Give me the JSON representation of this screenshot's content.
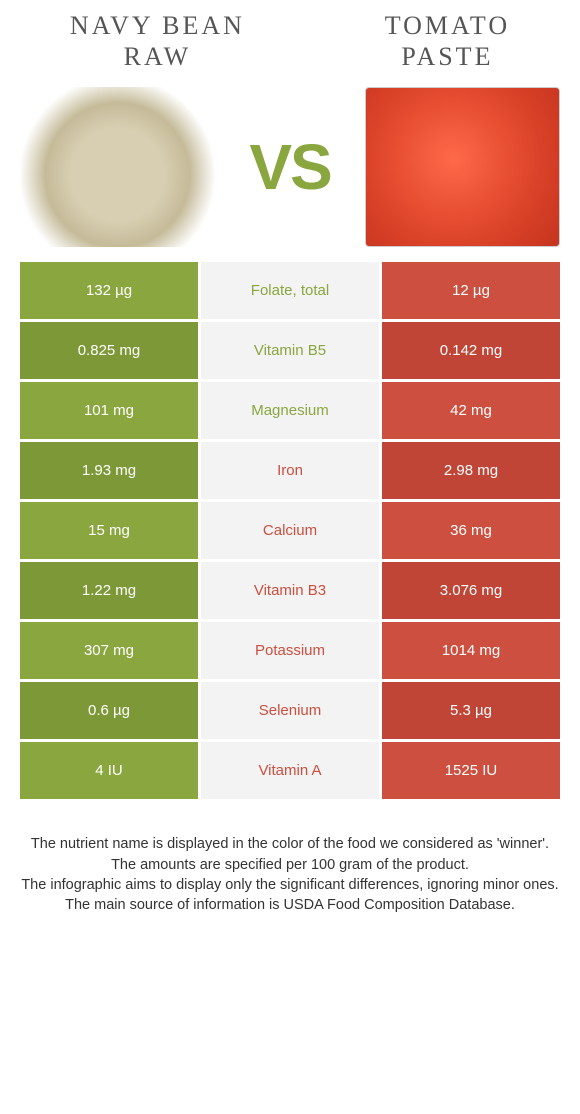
{
  "colors": {
    "left": "#8aa63f",
    "leftAlt": "#7d9937",
    "right": "#cc4f3f",
    "rightAlt": "#c04536",
    "midBg": "#f3f3f3",
    "vs": "#8aa63f"
  },
  "header": {
    "leftTitle": "NAVY BEAN\nRAW",
    "rightTitle": "TOMATO\nPASTE",
    "vs": "VS"
  },
  "rows": [
    {
      "left": "132 µg",
      "mid": "Folate, total",
      "right": "12 µg",
      "winner": "left"
    },
    {
      "left": "0.825 mg",
      "mid": "Vitamin B5",
      "right": "0.142 mg",
      "winner": "left"
    },
    {
      "left": "101 mg",
      "mid": "Magnesium",
      "right": "42 mg",
      "winner": "left"
    },
    {
      "left": "1.93 mg",
      "mid": "Iron",
      "right": "2.98 mg",
      "winner": "right"
    },
    {
      "left": "15 mg",
      "mid": "Calcium",
      "right": "36 mg",
      "winner": "right"
    },
    {
      "left": "1.22 mg",
      "mid": "Vitamin B3",
      "right": "3.076 mg",
      "winner": "right"
    },
    {
      "left": "307 mg",
      "mid": "Potassium",
      "right": "1014 mg",
      "winner": "right"
    },
    {
      "left": "0.6 µg",
      "mid": "Selenium",
      "right": "5.3 µg",
      "winner": "right"
    },
    {
      "left": "4 IU",
      "mid": "Vitamin A",
      "right": "1525 IU",
      "winner": "right"
    }
  ],
  "footer": {
    "line1": "The nutrient name is displayed in the color of the food we considered as 'winner'.",
    "line2": "The amounts are specified per 100 gram of the product.",
    "line3": "The infographic aims to display only the significant differences, ignoring minor ones.",
    "line4": "The main source of information is USDA Food Composition Database."
  }
}
